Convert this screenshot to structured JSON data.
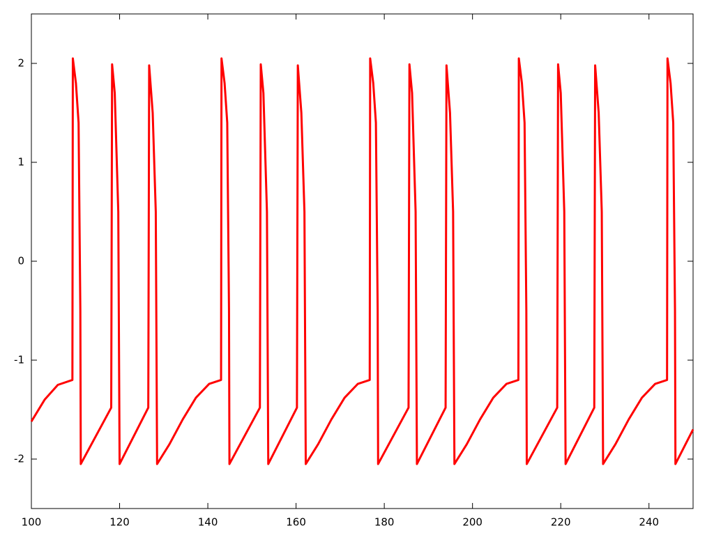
{
  "chart_data": {
    "type": "line",
    "x": [
      100,
      103,
      106,
      109.3,
      109.4,
      110.1,
      110.7,
      111.1,
      111.2,
      118.1,
      118.3,
      118.9,
      119.7,
      120.0,
      126.5,
      126.7,
      127.5,
      128.2,
      128.5,
      131.3,
      134.3,
      137.3,
      140.3,
      143.0,
      143.1,
      143.8,
      144.4,
      144.8,
      144.9,
      151.8,
      152.0,
      152.6,
      153.4,
      153.7,
      160.2,
      160.4,
      161.2,
      161.9,
      162.2,
      165.0,
      168.0,
      171.0,
      174.0,
      176.7,
      176.8,
      177.5,
      178.1,
      178.5,
      178.6,
      185.5,
      185.7,
      186.3,
      187.1,
      187.4,
      193.9,
      194.1,
      194.9,
      195.6,
      195.9,
      198.7,
      201.7,
      204.7,
      207.7,
      210.4,
      210.5,
      211.2,
      211.8,
      212.2,
      212.3,
      219.2,
      219.4,
      220.0,
      220.8,
      221.1,
      227.6,
      227.8,
      228.6,
      229.3,
      229.6,
      232.4,
      235.4,
      238.4,
      241.4,
      244.1,
      244.2,
      244.9,
      245.5,
      245.9,
      246.0,
      250.0
    ],
    "series": [
      {
        "color": "#ff0000",
        "values": [
          -1.62,
          -1.4,
          -1.25,
          -1.2,
          2.05,
          1.8,
          1.4,
          -0.5,
          -2.05,
          -1.48,
          1.99,
          1.7,
          0.5,
          -2.05,
          -1.48,
          1.98,
          1.5,
          0.5,
          -2.05,
          -1.85,
          -1.6,
          -1.38,
          -1.24,
          -1.2,
          2.05,
          1.8,
          1.4,
          -0.5,
          -2.05,
          -1.48,
          1.99,
          1.7,
          0.5,
          -2.05,
          -1.48,
          1.98,
          1.5,
          0.5,
          -2.05,
          -1.85,
          -1.6,
          -1.38,
          -1.24,
          -1.2,
          2.05,
          1.8,
          1.4,
          -0.5,
          -2.05,
          -1.48,
          1.99,
          1.7,
          0.5,
          -2.05,
          -1.48,
          1.98,
          1.5,
          0.5,
          -2.05,
          -1.85,
          -1.6,
          -1.38,
          -1.24,
          -1.2,
          2.05,
          1.8,
          1.4,
          -0.5,
          -2.05,
          -1.48,
          1.99,
          1.7,
          0.5,
          -2.05,
          -1.48,
          1.98,
          1.5,
          0.5,
          -2.05,
          -1.85,
          -1.6,
          -1.38,
          -1.24,
          -1.2,
          2.05,
          1.8,
          1.4,
          -0.5,
          -2.05,
          -1.7
        ]
      }
    ],
    "xlim": [
      100,
      250
    ],
    "xticks": [
      100,
      120,
      140,
      160,
      180,
      200,
      220,
      240
    ],
    "ylim": [
      -2.5,
      2.5
    ],
    "yticks": [
      -2,
      -1,
      0,
      1,
      2
    ]
  }
}
